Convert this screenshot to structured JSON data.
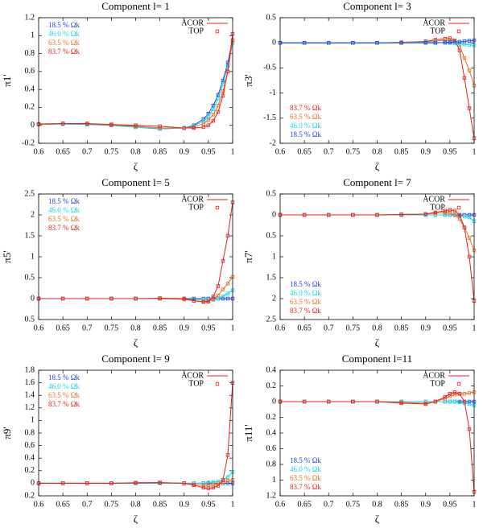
{
  "chart_data": [
    {
      "type": "line",
      "title": "Component l= 1",
      "x_label": "ζ",
      "y_label": "π1'",
      "legend_keys": [
        "ACOR",
        "TOP"
      ],
      "legend_position": "upper left",
      "x": [
        0.6,
        0.65,
        0.7,
        0.75,
        0.8,
        0.85,
        0.9,
        0.92,
        0.94,
        0.95,
        0.96,
        0.97,
        0.98,
        0.99,
        1.0
      ],
      "xlim": [
        0.6,
        1
      ],
      "xticks": [
        0.6,
        0.65,
        0.7,
        0.75,
        0.8,
        0.85,
        0.9,
        0.95,
        1
      ],
      "ylim": [
        -0.2,
        1.2
      ],
      "yticks": [
        -0.2,
        0,
        0.2,
        0.4,
        0.6,
        0.8,
        1,
        1.2
      ],
      "series": [
        {
          "name": "18.5 % Ωk",
          "color": "#2040e0",
          "values": [
            0.01,
            0.015,
            0.01,
            0,
            -0.02,
            -0.04,
            -0.03,
            0.0,
            0.07,
            0.13,
            0.22,
            0.34,
            0.5,
            0.7,
            0.95
          ]
        },
        {
          "name": "46.0 % Ωk",
          "color": "#10d8e8",
          "values": [
            0.01,
            0.015,
            0.01,
            0,
            -0.02,
            -0.04,
            -0.03,
            -0.01,
            0.05,
            0.1,
            0.18,
            0.3,
            0.46,
            0.66,
            0.92
          ]
        },
        {
          "name": "63.5 % Ωk",
          "color": "#e87020",
          "values": [
            0.01,
            0.02,
            0.015,
            0.005,
            -0.01,
            -0.03,
            -0.03,
            -0.02,
            0.02,
            0.06,
            0.12,
            0.22,
            0.38,
            0.6,
            0.95
          ]
        },
        {
          "name": "83.7 % Ωk",
          "color": "#e02020",
          "values": [
            0.015,
            0.02,
            0.02,
            0.01,
            0.0,
            -0.01,
            -0.03,
            -0.03,
            -0.02,
            0.0,
            0.05,
            0.15,
            0.33,
            0.6,
            1.02
          ]
        }
      ]
    },
    {
      "type": "line",
      "title": "Component l= 3",
      "x_label": "ζ",
      "y_label": "π3'",
      "legend_keys": [
        "ACOR",
        "TOP"
      ],
      "legend_position": "lower left",
      "x": [
        0.6,
        0.65,
        0.7,
        0.75,
        0.8,
        0.85,
        0.9,
        0.92,
        0.94,
        0.95,
        0.96,
        0.97,
        0.98,
        0.99,
        1.0
      ],
      "xlim": [
        0.6,
        1
      ],
      "xticks": [
        0.6,
        0.65,
        0.7,
        0.75,
        0.8,
        0.85,
        0.9,
        0.95,
        1
      ],
      "ylim": [
        -2,
        0.5
      ],
      "yticks": [
        -2,
        -1.5,
        -1,
        -0.5,
        0,
        0.5
      ],
      "series": [
        {
          "name": "83.7 % Ωk",
          "color": "#e02020",
          "values": [
            0,
            0,
            0,
            0,
            0,
            0.01,
            0.03,
            0.06,
            0.08,
            0.09,
            0.05,
            -0.15,
            -0.7,
            -1.3,
            -1.9
          ]
        },
        {
          "name": "63.5 % Ωk",
          "color": "#e87020",
          "values": [
            0,
            0,
            0,
            0,
            0,
            0.01,
            0.02,
            0.04,
            0.05,
            0.05,
            0.03,
            -0.05,
            -0.3,
            -0.55,
            -0.85
          ]
        },
        {
          "name": "46.0 % Ωk",
          "color": "#10d8e8",
          "values": [
            0,
            0,
            0,
            0,
            0,
            0,
            0.01,
            0.01,
            0.0,
            0.0,
            -0.01,
            -0.02,
            -0.03,
            -0.04,
            -0.05
          ]
        },
        {
          "name": "18.5 % Ωk",
          "color": "#2040e0",
          "values": [
            0,
            0,
            0,
            0,
            0,
            0,
            0,
            0,
            0.01,
            0.01,
            0.02,
            0.02,
            0.03,
            0.04,
            0.05
          ]
        }
      ]
    },
    {
      "type": "line",
      "title": "Component l= 5",
      "x_label": "ζ",
      "y_label": "π5'",
      "legend_keys": [
        "ACOR",
        "TOP"
      ],
      "legend_position": "upper left",
      "x": [
        0.6,
        0.65,
        0.7,
        0.75,
        0.8,
        0.85,
        0.9,
        0.92,
        0.94,
        0.95,
        0.96,
        0.97,
        0.98,
        0.99,
        1.0
      ],
      "xlim": [
        0.6,
        1
      ],
      "xticks": [
        0.6,
        0.65,
        0.7,
        0.75,
        0.8,
        0.85,
        0.9,
        0.95,
        1
      ],
      "ylim": [
        -0.5,
        2.5
      ],
      "yticks": [
        {
          "value": -0.5,
          "label": "0.5"
        },
        0,
        0.5,
        1,
        1.5,
        2,
        2.5
      ],
      "series": [
        {
          "name": "18.5 % Ωk",
          "color": "#2040e0",
          "values": [
            0,
            0,
            0,
            0,
            0,
            0,
            0,
            0,
            0,
            0,
            0,
            0,
            0,
            0,
            0
          ]
        },
        {
          "name": "46.0 % Ωk",
          "color": "#10d8e8",
          "values": [
            0,
            0,
            0,
            0,
            0,
            0,
            -0.01,
            -0.02,
            -0.03,
            -0.04,
            -0.03,
            0.0,
            0.06,
            0.12,
            0.2
          ]
        },
        {
          "name": "63.5 % Ωk",
          "color": "#e87020",
          "values": [
            0,
            0,
            0,
            0,
            0,
            0,
            -0.02,
            -0.05,
            -0.07,
            -0.06,
            -0.02,
            0.08,
            0.22,
            0.36,
            0.52
          ]
        },
        {
          "name": "83.7 % Ωk",
          "color": "#e02020",
          "values": [
            0,
            0,
            0,
            0,
            0,
            0.01,
            0,
            -0.05,
            -0.08,
            -0.07,
            0.05,
            0.3,
            0.9,
            1.5,
            2.3
          ]
        }
      ]
    },
    {
      "type": "line",
      "title": "Component l= 7",
      "x_label": "ζ",
      "y_label": "π7'",
      "legend_keys": [
        "ACOR",
        "TOP"
      ],
      "legend_position": "lower left",
      "x": [
        0.6,
        0.65,
        0.7,
        0.75,
        0.8,
        0.85,
        0.9,
        0.92,
        0.94,
        0.95,
        0.96,
        0.97,
        0.98,
        0.99,
        1.0
      ],
      "xlim": [
        0.6,
        1
      ],
      "xticks": [
        0.6,
        0.65,
        0.7,
        0.75,
        0.8,
        0.85,
        0.9,
        0.95,
        1
      ],
      "ylim": [
        -2.5,
        0.5
      ],
      "yticks": [
        {
          "value": -2.5,
          "label": "2.5"
        },
        {
          "value": -2,
          "label": "2"
        },
        {
          "value": -1.5,
          "label": "1.5"
        },
        {
          "value": -1,
          "label": "1"
        },
        {
          "value": -0.5,
          "label": "0.5"
        },
        0,
        0.5
      ],
      "series": [
        {
          "name": "18.5 % Ωk",
          "color": "#2040e0",
          "values": [
            0,
            0,
            0,
            0,
            0,
            0,
            0,
            0,
            0,
            0,
            0,
            0,
            0,
            0,
            0
          ]
        },
        {
          "name": "46.0 % Ωk",
          "color": "#10d8e8",
          "values": [
            0,
            0,
            0,
            0,
            0,
            0,
            0,
            0,
            0,
            0,
            -0.01,
            -0.02,
            -0.04,
            -0.06,
            -0.15
          ]
        },
        {
          "name": "63.5 % Ωk",
          "color": "#e87020",
          "values": [
            0,
            0,
            0,
            0,
            0,
            0.01,
            0.02,
            0.04,
            0.05,
            0.04,
            0.0,
            -0.1,
            -0.3,
            -0.55,
            -0.85
          ]
        },
        {
          "name": "83.7 % Ωk",
          "color": "#e02020",
          "values": [
            0,
            0,
            0,
            0,
            0,
            0.01,
            0.02,
            0.06,
            0.1,
            0.12,
            0.1,
            0.0,
            -0.3,
            -1.0,
            -2.05
          ]
        }
      ]
    },
    {
      "type": "line",
      "title": "Component l= 9",
      "x_label": "ζ",
      "y_label": "π9'",
      "legend_keys": [
        "ACOR",
        "TOP"
      ],
      "legend_position": "upper left",
      "x": [
        0.6,
        0.65,
        0.7,
        0.75,
        0.8,
        0.85,
        0.9,
        0.92,
        0.94,
        0.95,
        0.96,
        0.97,
        0.98,
        0.99,
        1.0
      ],
      "xlim": [
        0.6,
        1
      ],
      "xticks": [
        0.6,
        0.65,
        0.7,
        0.75,
        0.8,
        0.85,
        0.9,
        0.95,
        1
      ],
      "ylim": [
        -0.2,
        1.8
      ],
      "yticks": [
        {
          "value": -0.2,
          "label": "0.2"
        },
        0,
        0.2,
        0.4,
        0.6,
        0.8,
        1,
        1.2,
        1.4,
        1.6,
        1.8
      ],
      "series": [
        {
          "name": "18.5 % Ωk",
          "color": "#2040e0",
          "values": [
            0,
            0,
            0,
            0,
            0,
            0,
            0,
            0,
            0,
            0,
            0,
            0,
            0,
            0,
            0
          ]
        },
        {
          "name": "46.0 % Ωk",
          "color": "#10d8e8",
          "values": [
            0,
            0,
            0,
            0,
            0,
            0,
            0,
            0,
            0,
            0.01,
            0.02,
            0.03,
            0.05,
            0.1,
            0.18
          ]
        },
        {
          "name": "63.5 % Ωk",
          "color": "#e87020",
          "values": [
            0,
            0,
            0,
            0,
            0.01,
            0.01,
            0,
            -0.02,
            -0.03,
            -0.03,
            -0.02,
            0,
            0.02,
            0.04,
            0.05
          ]
        },
        {
          "name": "83.7 % Ωk",
          "color": "#e02020",
          "values": [
            0,
            0,
            0,
            0,
            0.005,
            0.01,
            0.0,
            -0.03,
            -0.07,
            -0.08,
            -0.07,
            -0.04,
            0.05,
            0.45,
            1.6
          ]
        }
      ]
    },
    {
      "type": "line",
      "title": "Component l=11",
      "x_label": "ζ",
      "y_label": "π11'",
      "legend_keys": [
        "ACOR",
        "TOP"
      ],
      "legend_position": "lower left",
      "x": [
        0.6,
        0.65,
        0.7,
        0.75,
        0.8,
        0.85,
        0.9,
        0.92,
        0.94,
        0.95,
        0.96,
        0.97,
        0.98,
        0.99,
        1.0
      ],
      "xlim": [
        0.6,
        1
      ],
      "xticks": [
        0.6,
        0.65,
        0.7,
        0.75,
        0.8,
        0.85,
        0.9,
        0.95,
        1
      ],
      "ylim": [
        -1.2,
        0.4
      ],
      "yticks": [
        {
          "value": -1.2,
          "label": "1.2"
        },
        {
          "value": -1,
          "label": "1"
        },
        {
          "value": -0.8,
          "label": "0.8"
        },
        {
          "value": -0.6,
          "label": "0.6"
        },
        {
          "value": -0.4,
          "label": "0.4"
        },
        {
          "value": -0.2,
          "label": "0.2"
        },
        0,
        0.2,
        0.4
      ],
      "series": [
        {
          "name": "18.5 % Ωk",
          "color": "#2040e0",
          "values": [
            0,
            0,
            0,
            0,
            0,
            0,
            0,
            0,
            0,
            0,
            0,
            0,
            0,
            0,
            0
          ]
        },
        {
          "name": "46.0 % Ωk",
          "color": "#10d8e8",
          "values": [
            0,
            0,
            0,
            0,
            0,
            0,
            0,
            0,
            0,
            0,
            0,
            -0.01,
            -0.02,
            -0.03,
            -0.05
          ]
        },
        {
          "name": "63.5 % Ωk",
          "color": "#e87020",
          "values": [
            0,
            0,
            0,
            0,
            0,
            -0.01,
            -0.02,
            0.0,
            0.04,
            0.07,
            0.09,
            0.1,
            0.1,
            0.11,
            0.12
          ]
        },
        {
          "name": "83.7 % Ωk",
          "color": "#e02020",
          "values": [
            0,
            0,
            0,
            0,
            0,
            -0.02,
            -0.03,
            0,
            0.06,
            0.1,
            0.12,
            0.1,
            0.0,
            -0.35,
            -1.15
          ]
        }
      ]
    }
  ]
}
